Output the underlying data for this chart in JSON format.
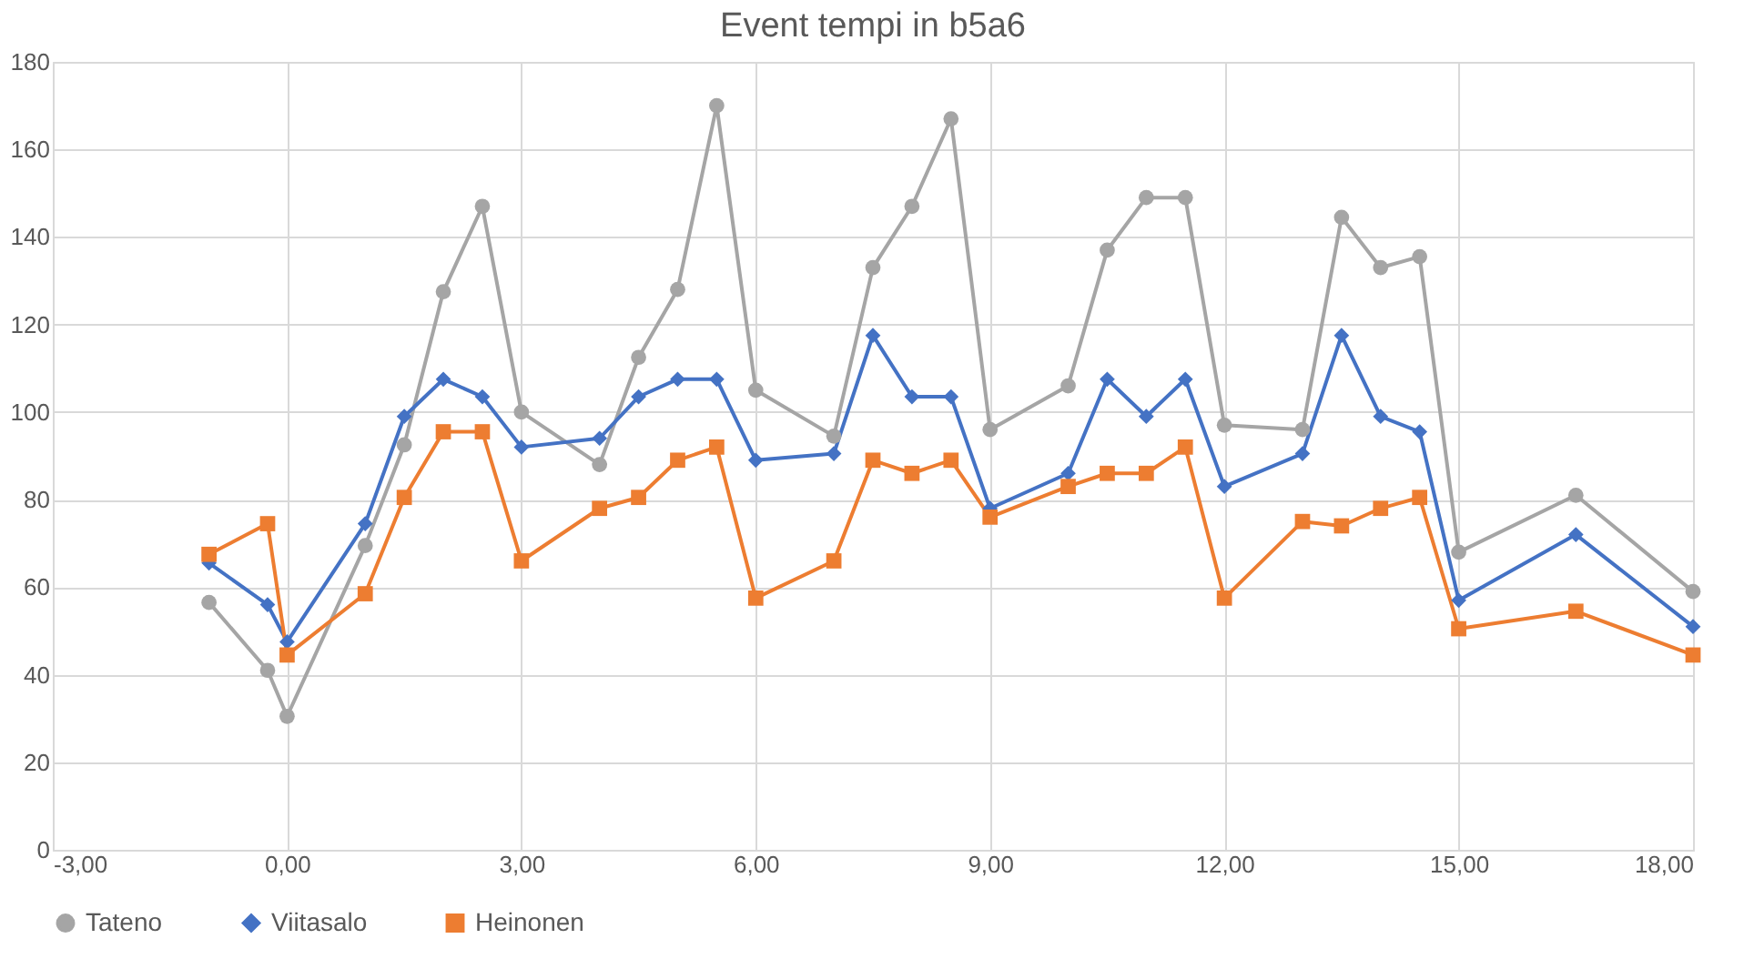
{
  "chart_data": {
    "type": "line",
    "title": "Event tempi in b5a6",
    "x": [
      -1,
      -0.25,
      0,
      1,
      1.5,
      2,
      2.5,
      3,
      4,
      4.5,
      5,
      5.5,
      6,
      7,
      7.5,
      8,
      8.5,
      9,
      10,
      10.5,
      11,
      11.5,
      12,
      13,
      13.5,
      14,
      14.5,
      15,
      16.5,
      18
    ],
    "series": [
      {
        "name": "Tateno",
        "color": "#a5a5a5",
        "marker": "circle",
        "values": [
          56.5,
          41,
          30.5,
          69.5,
          92.5,
          127.5,
          147,
          100,
          88,
          112.5,
          128,
          170,
          105,
          94.5,
          133,
          147,
          167,
          96,
          106,
          137,
          149,
          149,
          97,
          96,
          144.5,
          133,
          135.5,
          68,
          81,
          59
        ]
      },
      {
        "name": "Viitasalo",
        "color": "#4472c4",
        "marker": "diamond",
        "values": [
          65.5,
          56,
          47.5,
          74.5,
          99,
          107.5,
          103.5,
          92,
          94,
          103.5,
          107.5,
          107.5,
          89,
          90.5,
          117.5,
          103.5,
          103.5,
          78,
          86,
          107.5,
          99,
          107.5,
          83,
          90.5,
          117.5,
          99,
          95.5,
          57,
          72,
          51
        ]
      },
      {
        "name": "Heinonen",
        "color": "#ed7d31",
        "marker": "square",
        "values": [
          67.5,
          74.5,
          44.5,
          58.5,
          80.5,
          95.5,
          95.5,
          66,
          78,
          80.5,
          89,
          92,
          57.5,
          66,
          89,
          86,
          89,
          76,
          83,
          86,
          86,
          92,
          57.5,
          75,
          74,
          78,
          80.5,
          50.5,
          54.5,
          44.5
        ]
      }
    ],
    "xlim": [
      -3,
      18
    ],
    "xticks": [
      {
        "value": -3,
        "label": "-3,00"
      },
      {
        "value": 0,
        "label": "0,00"
      },
      {
        "value": 3,
        "label": "3,00"
      },
      {
        "value": 6,
        "label": "6,00"
      },
      {
        "value": 9,
        "label": "9,00"
      },
      {
        "value": 12,
        "label": "12,00"
      },
      {
        "value": 15,
        "label": "15,00"
      },
      {
        "value": 18,
        "label": "18,00"
      }
    ],
    "ylim": [
      0,
      180
    ],
    "yticks": [
      0,
      20,
      40,
      60,
      80,
      100,
      120,
      140,
      160,
      180
    ],
    "grid": true,
    "legend": "bottom",
    "line_style": "solid"
  }
}
